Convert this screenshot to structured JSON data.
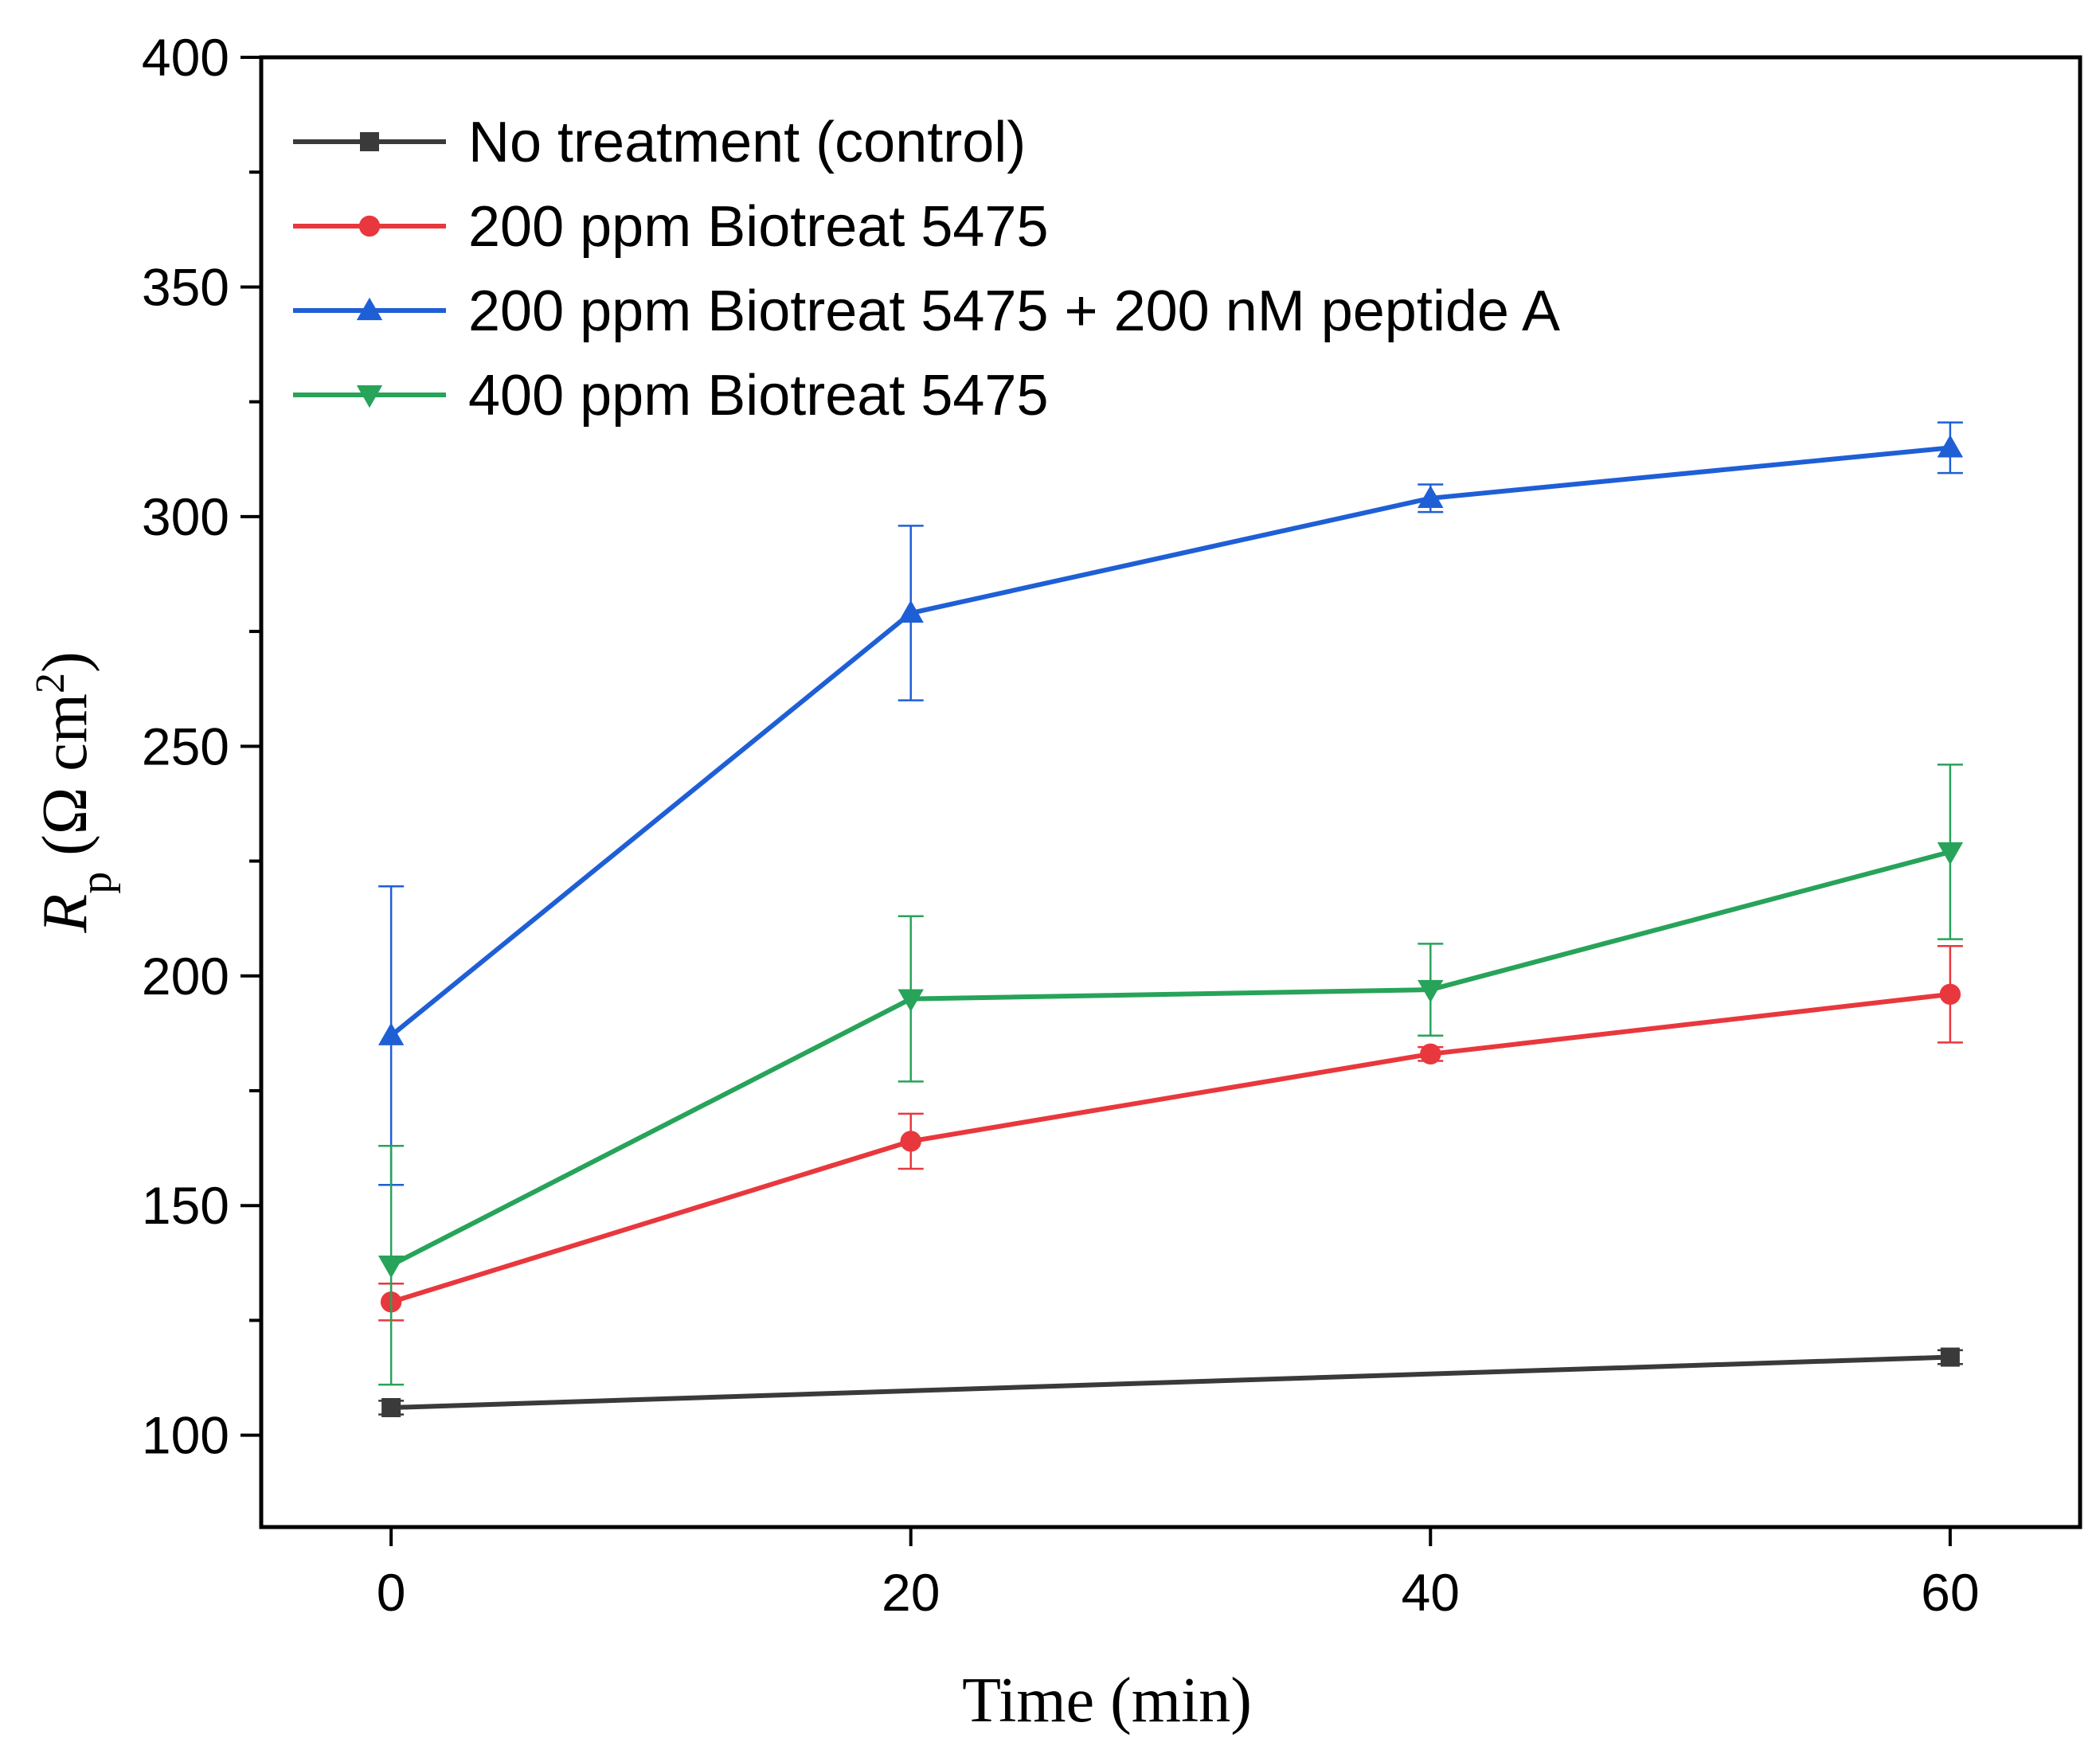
{
  "chart_data": {
    "type": "line",
    "title": "",
    "xlabel": "Time (min)",
    "ylabel": {
      "symbol": "R",
      "subscript": "p",
      "unit_prefix": " (Ω cm",
      "unit_sup": "2",
      "unit_suffix": ")"
    },
    "xlim": [
      -5,
      65
    ],
    "ylim": [
      80,
      400
    ],
    "x_ticks": [
      0,
      20,
      40,
      60
    ],
    "y_ticks": [
      100,
      150,
      200,
      250,
      300,
      350,
      400
    ],
    "y_minor_step": 25,
    "grid": false,
    "legend_position": "top-left",
    "series": [
      {
        "name": "No treatment (control)",
        "color": "#3a3a3a",
        "marker": "square",
        "x": [
          0,
          60
        ],
        "y": [
          106,
          117
        ],
        "err": [
          1.5,
          1.5
        ]
      },
      {
        "name": "200 ppm Biotreat 5475",
        "color": "#e8383d",
        "marker": "circle",
        "x": [
          0,
          20,
          40,
          60
        ],
        "y": [
          129,
          164,
          183,
          196
        ],
        "err": [
          4,
          6,
          1.5,
          10.5
        ]
      },
      {
        "name": "200 ppm Biotreat 5475 + 200 nM peptide A",
        "color": "#1f5fd6",
        "marker": "triangle-up",
        "x": [
          0,
          20,
          40,
          60
        ],
        "y": [
          187,
          279,
          304,
          315
        ],
        "err": [
          32.5,
          19,
          3,
          5.5
        ]
      },
      {
        "name": "400 ppm Biotreat 5475",
        "color": "#27a35a",
        "marker": "triangle-down",
        "x": [
          0,
          20,
          40,
          60
        ],
        "y": [
          137,
          195,
          197,
          227
        ],
        "err": [
          26,
          18,
          10,
          19
        ]
      }
    ]
  }
}
